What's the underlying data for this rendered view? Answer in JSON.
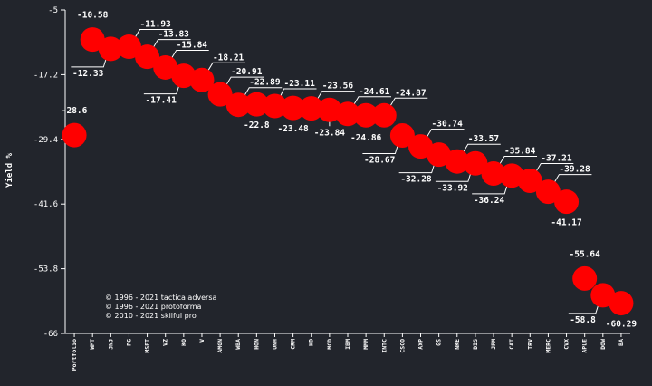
{
  "chart_data": {
    "type": "scatter",
    "ylabel": "Yield %",
    "xlabel": "",
    "ylim": [
      -66,
      -5
    ],
    "yticks": [
      "-5",
      "-17.2",
      "-29.4",
      "-41.6",
      "-53.8",
      "-66"
    ],
    "categories": [
      "Portfolio",
      "WMT",
      "JNJ",
      "PG",
      "MSFT",
      "VZ",
      "KO",
      "V",
      "AMGN",
      "WBA",
      "HON",
      "UNH",
      "CRM",
      "HD",
      "MCD",
      "IBM",
      "MMM",
      "INTC",
      "CSCO",
      "AXP",
      "GS",
      "NKE",
      "DIS",
      "JPM",
      "CAT",
      "TRV",
      "MERC",
      "CVX",
      "APLE",
      "DOW",
      "BA"
    ],
    "values": [
      -28.6,
      -10.58,
      -12.33,
      -11.93,
      -13.83,
      -15.84,
      -17.41,
      -18.21,
      -20.91,
      -22.89,
      -22.8,
      -23.11,
      -23.48,
      -23.56,
      -23.84,
      -24.61,
      -24.86,
      -24.87,
      -28.67,
      -30.74,
      -32.28,
      -33.57,
      -33.92,
      -35.84,
      -36.24,
      -37.21,
      -39.28,
      -41.17,
      -55.64,
      -58.8,
      -60.29
    ],
    "labels": [
      "-28.6",
      "-10.58",
      "-12.33",
      "-11.93",
      "-13.83",
      "-15.84",
      "-17.41",
      "-18.21",
      "-20.91",
      "-22.89",
      "-22.8",
      "-23.11",
      "-23.48",
      "-23.56",
      "-23.84",
      "-24.61",
      "-24.86",
      "-24.87",
      "-28.67",
      "-30.74",
      "-32.28",
      "-33.57",
      "-33.92",
      "-35.84",
      "-36.24",
      "-37.21",
      "-39.28",
      "-41.17",
      "-55.64",
      "-58.8",
      "-60.29"
    ],
    "grid": false,
    "colors": {
      "background": "#22252c",
      "point": "#ff0000",
      "text": "#ffffff",
      "axis": "#ffffff"
    }
  },
  "credits": [
    "© 1996 - 2021 tactica adversa",
    "© 1996 - 2021 protoforma",
    "© 2010 - 2021 skilful pro"
  ]
}
